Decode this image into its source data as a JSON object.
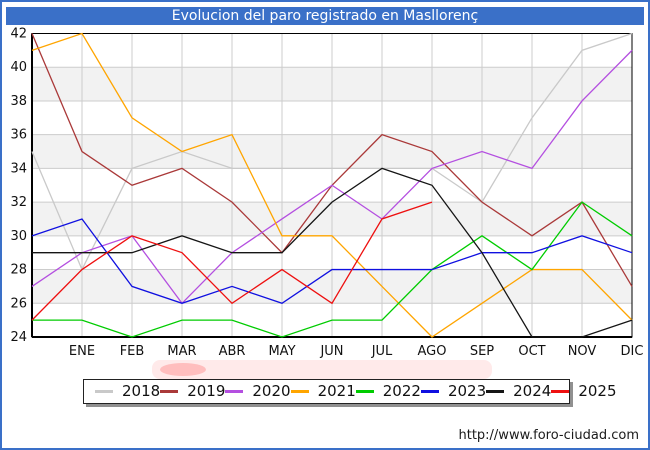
{
  "title": "Evolucion del paro registrado en Masllorenç",
  "footer": {
    "url": "http://www.foro-ciudad.com"
  },
  "chart_data": {
    "type": "line",
    "title": "Evolucion del paro registrado en Masllorenç",
    "xlabel": "",
    "ylabel": "",
    "grid": true,
    "plot_bands_alternating": true,
    "legend_position": "bottom",
    "x_axis": {
      "categories": [
        "",
        "ENE",
        "FEB",
        "MAR",
        "ABR",
        "MAY",
        "JUN",
        "JUL",
        "AGO",
        "SEP",
        "OCT",
        "NOV",
        "DIC"
      ],
      "note": "first point of each series sits on the left axis before ENE"
    },
    "y_axis": {
      "min": 24,
      "max": 42,
      "tick_step": 2,
      "ticks": [
        42,
        40,
        38,
        36,
        34,
        32,
        30,
        28,
        26,
        24
      ]
    },
    "series": [
      {
        "name": "2018",
        "color": "#c9c9c9",
        "values": [
          35,
          28,
          34,
          35,
          34,
          34,
          34,
          34,
          34,
          32,
          37,
          41,
          42
        ]
      },
      {
        "name": "2019",
        "color": "#aa3939",
        "values": [
          42,
          35,
          33,
          34,
          32,
          29,
          33,
          36,
          35,
          32,
          30,
          32,
          27
        ]
      },
      {
        "name": "2020",
        "color": "#b44fe0",
        "values": [
          27,
          29,
          30,
          26,
          29,
          31,
          33,
          31,
          34,
          35,
          34,
          38,
          41
        ]
      },
      {
        "name": "2021",
        "color": "#ffa500",
        "values": [
          41,
          42,
          37,
          35,
          36,
          30,
          30,
          27,
          24,
          26,
          28,
          28,
          25
        ]
      },
      {
        "name": "2022",
        "color": "#00cc00",
        "values": [
          25,
          25,
          24,
          25,
          25,
          24,
          25,
          25,
          28,
          30,
          28,
          32,
          30
        ]
      },
      {
        "name": "2023",
        "color": "#1010e0",
        "values": [
          30,
          31,
          27,
          26,
          27,
          26,
          28,
          28,
          28,
          29,
          29,
          30,
          29
        ]
      },
      {
        "name": "2024",
        "color": "#151515",
        "values": [
          29,
          29,
          29,
          30,
          29,
          29,
          32,
          34,
          33,
          29,
          24,
          24,
          25
        ]
      },
      {
        "name": "2025",
        "color": "#ee1010",
        "values": [
          25,
          28,
          30,
          29,
          26,
          28,
          26,
          31,
          32
        ]
      }
    ]
  }
}
